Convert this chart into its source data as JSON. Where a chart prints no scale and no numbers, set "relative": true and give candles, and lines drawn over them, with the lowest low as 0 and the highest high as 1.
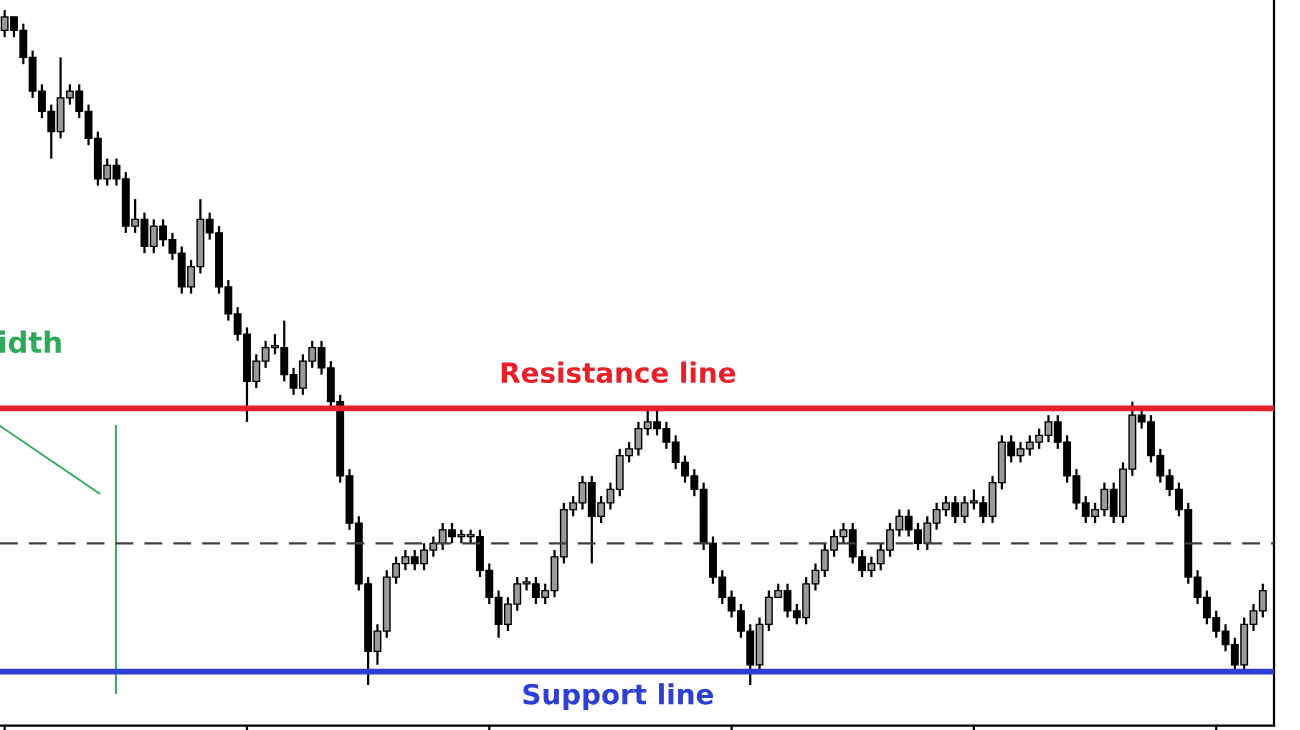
{
  "chart_data": {
    "type": "candlestick",
    "relative": true,
    "grid": false,
    "categories": [
      null,
      null,
      null,
      null,
      null,
      null,
      null,
      null,
      null,
      null,
      null,
      null,
      null,
      null,
      null,
      null,
      null,
      null,
      null,
      null,
      null,
      null,
      null,
      null,
      null,
      null,
      null,
      null,
      null,
      null,
      null,
      null,
      null,
      null,
      null,
      null,
      null,
      null,
      null,
      null,
      null,
      null,
      null,
      null,
      null,
      null,
      null,
      null,
      null,
      null,
      null,
      null,
      null,
      null,
      null,
      null,
      null,
      null,
      null,
      null,
      null,
      null,
      null,
      null,
      null,
      null,
      null,
      null,
      null,
      null,
      null,
      null,
      null,
      null,
      null,
      null,
      null,
      null,
      null,
      null,
      null,
      null,
      null,
      null,
      null,
      null,
      null,
      null,
      null,
      null,
      null,
      null,
      null,
      null,
      null,
      null,
      null,
      null,
      null,
      null,
      null,
      null,
      null,
      null,
      null,
      null,
      null,
      null,
      null,
      null,
      null,
      null,
      null,
      null,
      null,
      null,
      null,
      null,
      null,
      null,
      null,
      null,
      null,
      null,
      null,
      null,
      null,
      null,
      null,
      null,
      null,
      null,
      null,
      null,
      null,
      null
    ],
    "ohlc": [
      [
        0.97,
        1.0,
        0.96,
        0.99
      ],
      [
        0.99,
        0.99,
        0.96,
        0.97
      ],
      [
        0.97,
        0.98,
        0.92,
        0.93
      ],
      [
        0.93,
        0.94,
        0.87,
        0.88
      ],
      [
        0.88,
        0.89,
        0.84,
        0.85
      ],
      [
        0.85,
        0.86,
        0.78,
        0.82
      ],
      [
        0.82,
        0.93,
        0.81,
        0.87
      ],
      [
        0.87,
        0.89,
        0.86,
        0.88
      ],
      [
        0.88,
        0.89,
        0.84,
        0.85
      ],
      [
        0.85,
        0.86,
        0.8,
        0.81
      ],
      [
        0.81,
        0.82,
        0.74,
        0.75
      ],
      [
        0.75,
        0.78,
        0.74,
        0.77
      ],
      [
        0.77,
        0.78,
        0.74,
        0.75
      ],
      [
        0.75,
        0.76,
        0.67,
        0.68
      ],
      [
        0.68,
        0.72,
        0.67,
        0.69
      ],
      [
        0.69,
        0.7,
        0.64,
        0.65
      ],
      [
        0.65,
        0.69,
        0.64,
        0.68
      ],
      [
        0.68,
        0.69,
        0.65,
        0.66
      ],
      [
        0.66,
        0.67,
        0.63,
        0.64
      ],
      [
        0.64,
        0.65,
        0.58,
        0.59
      ],
      [
        0.59,
        0.63,
        0.58,
        0.62
      ],
      [
        0.62,
        0.72,
        0.61,
        0.69
      ],
      [
        0.69,
        0.7,
        0.66,
        0.67
      ],
      [
        0.67,
        0.68,
        0.58,
        0.59
      ],
      [
        0.59,
        0.6,
        0.54,
        0.55
      ],
      [
        0.55,
        0.56,
        0.51,
        0.52
      ],
      [
        0.52,
        0.53,
        0.39,
        0.45
      ],
      [
        0.45,
        0.49,
        0.44,
        0.48
      ],
      [
        0.48,
        0.51,
        0.47,
        0.5
      ],
      [
        0.5,
        0.52,
        0.49,
        0.5
      ],
      [
        0.5,
        0.54,
        0.45,
        0.46
      ],
      [
        0.46,
        0.47,
        0.43,
        0.44
      ],
      [
        0.44,
        0.49,
        0.43,
        0.48
      ],
      [
        0.48,
        0.51,
        0.47,
        0.5
      ],
      [
        0.5,
        0.51,
        0.46,
        0.47
      ],
      [
        0.47,
        0.48,
        0.41,
        0.42
      ],
      [
        0.42,
        0.43,
        0.3,
        0.31
      ],
      [
        0.31,
        0.32,
        0.23,
        0.24
      ],
      [
        0.24,
        0.25,
        0.14,
        0.15
      ],
      [
        0.15,
        0.16,
        0.0,
        0.05
      ],
      [
        0.05,
        0.09,
        0.03,
        0.08
      ],
      [
        0.08,
        0.17,
        0.07,
        0.16
      ],
      [
        0.16,
        0.19,
        0.15,
        0.18
      ],
      [
        0.18,
        0.2,
        0.17,
        0.19
      ],
      [
        0.19,
        0.2,
        0.17,
        0.18
      ],
      [
        0.18,
        0.21,
        0.17,
        0.2
      ],
      [
        0.2,
        0.22,
        0.19,
        0.21
      ],
      [
        0.21,
        0.24,
        0.2,
        0.23
      ],
      [
        0.23,
        0.24,
        0.21,
        0.22
      ],
      [
        0.22,
        0.23,
        0.21,
        0.22
      ],
      [
        0.22,
        0.23,
        0.21,
        0.22
      ],
      [
        0.22,
        0.23,
        0.16,
        0.17
      ],
      [
        0.17,
        0.18,
        0.12,
        0.13
      ],
      [
        0.13,
        0.14,
        0.07,
        0.09
      ],
      [
        0.09,
        0.13,
        0.08,
        0.12
      ],
      [
        0.12,
        0.16,
        0.11,
        0.15
      ],
      [
        0.15,
        0.16,
        0.14,
        0.15
      ],
      [
        0.15,
        0.16,
        0.12,
        0.13
      ],
      [
        0.13,
        0.15,
        0.12,
        0.14
      ],
      [
        0.14,
        0.2,
        0.13,
        0.19
      ],
      [
        0.19,
        0.27,
        0.18,
        0.26
      ],
      [
        0.26,
        0.28,
        0.25,
        0.27
      ],
      [
        0.27,
        0.31,
        0.26,
        0.3
      ],
      [
        0.3,
        0.31,
        0.18,
        0.25
      ],
      [
        0.25,
        0.28,
        0.24,
        0.27
      ],
      [
        0.27,
        0.3,
        0.26,
        0.29
      ],
      [
        0.29,
        0.35,
        0.28,
        0.34
      ],
      [
        0.34,
        0.36,
        0.33,
        0.35
      ],
      [
        0.35,
        0.39,
        0.34,
        0.38
      ],
      [
        0.38,
        0.41,
        0.37,
        0.39
      ],
      [
        0.39,
        0.41,
        0.37,
        0.38
      ],
      [
        0.38,
        0.39,
        0.35,
        0.36
      ],
      [
        0.36,
        0.37,
        0.32,
        0.33
      ],
      [
        0.33,
        0.34,
        0.3,
        0.31
      ],
      [
        0.31,
        0.32,
        0.28,
        0.29
      ],
      [
        0.29,
        0.3,
        0.2,
        0.21
      ],
      [
        0.21,
        0.22,
        0.15,
        0.16
      ],
      [
        0.16,
        0.17,
        0.12,
        0.13
      ],
      [
        0.13,
        0.14,
        0.1,
        0.11
      ],
      [
        0.11,
        0.12,
        0.07,
        0.08
      ],
      [
        0.08,
        0.09,
        0.0,
        0.03
      ],
      [
        0.03,
        0.1,
        0.02,
        0.09
      ],
      [
        0.09,
        0.14,
        0.08,
        0.13
      ],
      [
        0.13,
        0.15,
        0.13,
        0.14
      ],
      [
        0.14,
        0.15,
        0.1,
        0.11
      ],
      [
        0.11,
        0.12,
        0.09,
        0.1
      ],
      [
        0.1,
        0.16,
        0.09,
        0.15
      ],
      [
        0.15,
        0.18,
        0.14,
        0.17
      ],
      [
        0.17,
        0.21,
        0.16,
        0.2
      ],
      [
        0.2,
        0.23,
        0.19,
        0.22
      ],
      [
        0.22,
        0.24,
        0.21,
        0.23
      ],
      [
        0.23,
        0.24,
        0.18,
        0.19
      ],
      [
        0.19,
        0.2,
        0.16,
        0.17
      ],
      [
        0.17,
        0.19,
        0.16,
        0.18
      ],
      [
        0.18,
        0.21,
        0.17,
        0.2
      ],
      [
        0.2,
        0.24,
        0.19,
        0.23
      ],
      [
        0.23,
        0.26,
        0.22,
        0.25
      ],
      [
        0.25,
        0.26,
        0.22,
        0.23
      ],
      [
        0.23,
        0.24,
        0.2,
        0.21
      ],
      [
        0.21,
        0.25,
        0.2,
        0.24
      ],
      [
        0.24,
        0.27,
        0.23,
        0.26
      ],
      [
        0.26,
        0.28,
        0.25,
        0.27
      ],
      [
        0.27,
        0.28,
        0.24,
        0.25
      ],
      [
        0.25,
        0.28,
        0.24,
        0.27
      ],
      [
        0.27,
        0.29,
        0.26,
        0.27
      ],
      [
        0.27,
        0.28,
        0.24,
        0.25
      ],
      [
        0.25,
        0.31,
        0.24,
        0.3
      ],
      [
        0.3,
        0.37,
        0.29,
        0.36
      ],
      [
        0.36,
        0.37,
        0.33,
        0.34
      ],
      [
        0.34,
        0.36,
        0.33,
        0.35
      ],
      [
        0.35,
        0.37,
        0.34,
        0.36
      ],
      [
        0.36,
        0.38,
        0.35,
        0.37
      ],
      [
        0.37,
        0.4,
        0.36,
        0.39
      ],
      [
        0.39,
        0.4,
        0.35,
        0.36
      ],
      [
        0.36,
        0.37,
        0.3,
        0.31
      ],
      [
        0.31,
        0.32,
        0.26,
        0.27
      ],
      [
        0.27,
        0.28,
        0.24,
        0.25
      ],
      [
        0.25,
        0.27,
        0.24,
        0.26
      ],
      [
        0.26,
        0.3,
        0.25,
        0.29
      ],
      [
        0.29,
        0.3,
        0.24,
        0.25
      ],
      [
        0.25,
        0.33,
        0.24,
        0.32
      ],
      [
        0.32,
        0.42,
        0.31,
        0.4
      ],
      [
        0.4,
        0.41,
        0.38,
        0.39
      ],
      [
        0.39,
        0.4,
        0.33,
        0.34
      ],
      [
        0.34,
        0.35,
        0.3,
        0.31
      ],
      [
        0.31,
        0.32,
        0.28,
        0.29
      ],
      [
        0.29,
        0.3,
        0.25,
        0.26
      ],
      [
        0.26,
        0.27,
        0.15,
        0.16
      ],
      [
        0.16,
        0.17,
        0.12,
        0.13
      ],
      [
        0.13,
        0.14,
        0.09,
        0.1
      ],
      [
        0.1,
        0.11,
        0.07,
        0.08
      ],
      [
        0.08,
        0.09,
        0.05,
        0.06
      ],
      [
        0.06,
        0.07,
        0.02,
        0.03
      ],
      [
        0.03,
        0.1,
        0.02,
        0.09
      ],
      [
        0.09,
        0.12,
        0.08,
        0.11
      ],
      [
        0.11,
        0.15,
        0.1,
        0.14
      ]
    ],
    "ref_lines": [
      {
        "axis": "y",
        "value": 0.41,
        "label": "Resistance line",
        "color": "#e8202a",
        "line_style": "solid"
      },
      {
        "axis": "y",
        "value": 0.02,
        "label": "Support line",
        "color": "#2f3fd6",
        "line_style": "solid"
      },
      {
        "axis": "y",
        "value": 0.21,
        "label": null,
        "color": "#404040",
        "line_style": "dashed"
      }
    ],
    "annotations": [
      "idth"
    ]
  }
}
